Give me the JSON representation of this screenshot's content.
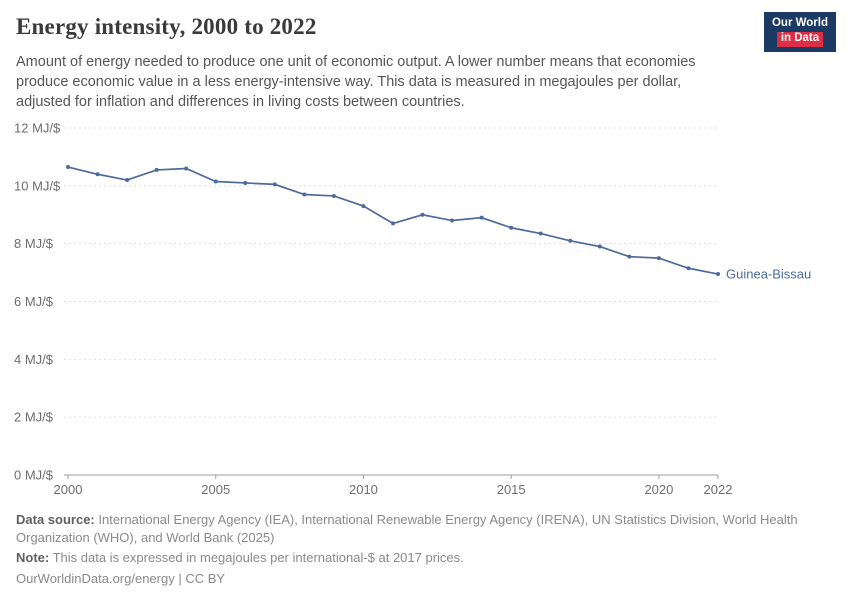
{
  "header": {
    "title": "Energy intensity, 2000 to 2022",
    "subtitle": "Amount of energy needed to produce one unit of economic output. A lower number means that economies produce economic value in a less energy-intensive way. This data is measured in megajoules per dollar, adjusted for inflation and differences in living costs between countries.",
    "logo": {
      "line1": "Our World",
      "line2": "in Data"
    }
  },
  "chart_data": {
    "type": "line",
    "title": "Energy intensity, 2000 to 2022",
    "x": [
      2000,
      2001,
      2002,
      2003,
      2004,
      2005,
      2006,
      2007,
      2008,
      2009,
      2010,
      2011,
      2012,
      2013,
      2014,
      2015,
      2016,
      2017,
      2018,
      2019,
      2020,
      2021,
      2022
    ],
    "series": [
      {
        "name": "Guinea-Bissau",
        "color": "#4C6A9C",
        "values": [
          10.65,
          10.4,
          10.2,
          10.55,
          10.6,
          10.15,
          10.1,
          10.05,
          9.7,
          9.65,
          9.3,
          8.7,
          9.0,
          8.8,
          8.9,
          8.55,
          8.35,
          8.1,
          7.9,
          7.55,
          7.5,
          7.15,
          6.95
        ]
      }
    ],
    "ylabel": "MJ/$",
    "ylim": [
      0,
      12
    ],
    "yticks": [
      {
        "value": 0,
        "label": "0 MJ/$"
      },
      {
        "value": 2,
        "label": "2 MJ/$"
      },
      {
        "value": 4,
        "label": "4 MJ/$"
      },
      {
        "value": 6,
        "label": "6 MJ/$"
      },
      {
        "value": 8,
        "label": "8 MJ/$"
      },
      {
        "value": 10,
        "label": "10 MJ/$"
      },
      {
        "value": 12,
        "label": "12 MJ/$"
      }
    ],
    "xticks": [
      {
        "value": 2000,
        "label": "2000"
      },
      {
        "value": 2005,
        "label": "2005"
      },
      {
        "value": 2010,
        "label": "2010"
      },
      {
        "value": 2015,
        "label": "2015"
      },
      {
        "value": 2020,
        "label": "2020"
      },
      {
        "value": 2022,
        "label": "2022"
      }
    ],
    "grid": "dashed-horizontal",
    "legend_position": "end-of-line-label"
  },
  "footer": {
    "source_label": "Data source:",
    "source_text": " International Energy Agency (IEA), International Renewable Energy Agency (IRENA), UN Statistics Division, World Health Organization (WHO), and World Bank (2025)",
    "note_label": "Note:",
    "note_text": " This data is expressed in megajoules per international-$ at 2017 prices.",
    "link": "OurWorldinData.org/energy",
    "separator": " | ",
    "license": "CC BY"
  },
  "colors": {
    "line": "#4C6A9C",
    "logo_background": "#1a3a63",
    "logo_accent": "#dc2e44",
    "gridline": "#dedede",
    "axis": "#9e9e9e"
  }
}
